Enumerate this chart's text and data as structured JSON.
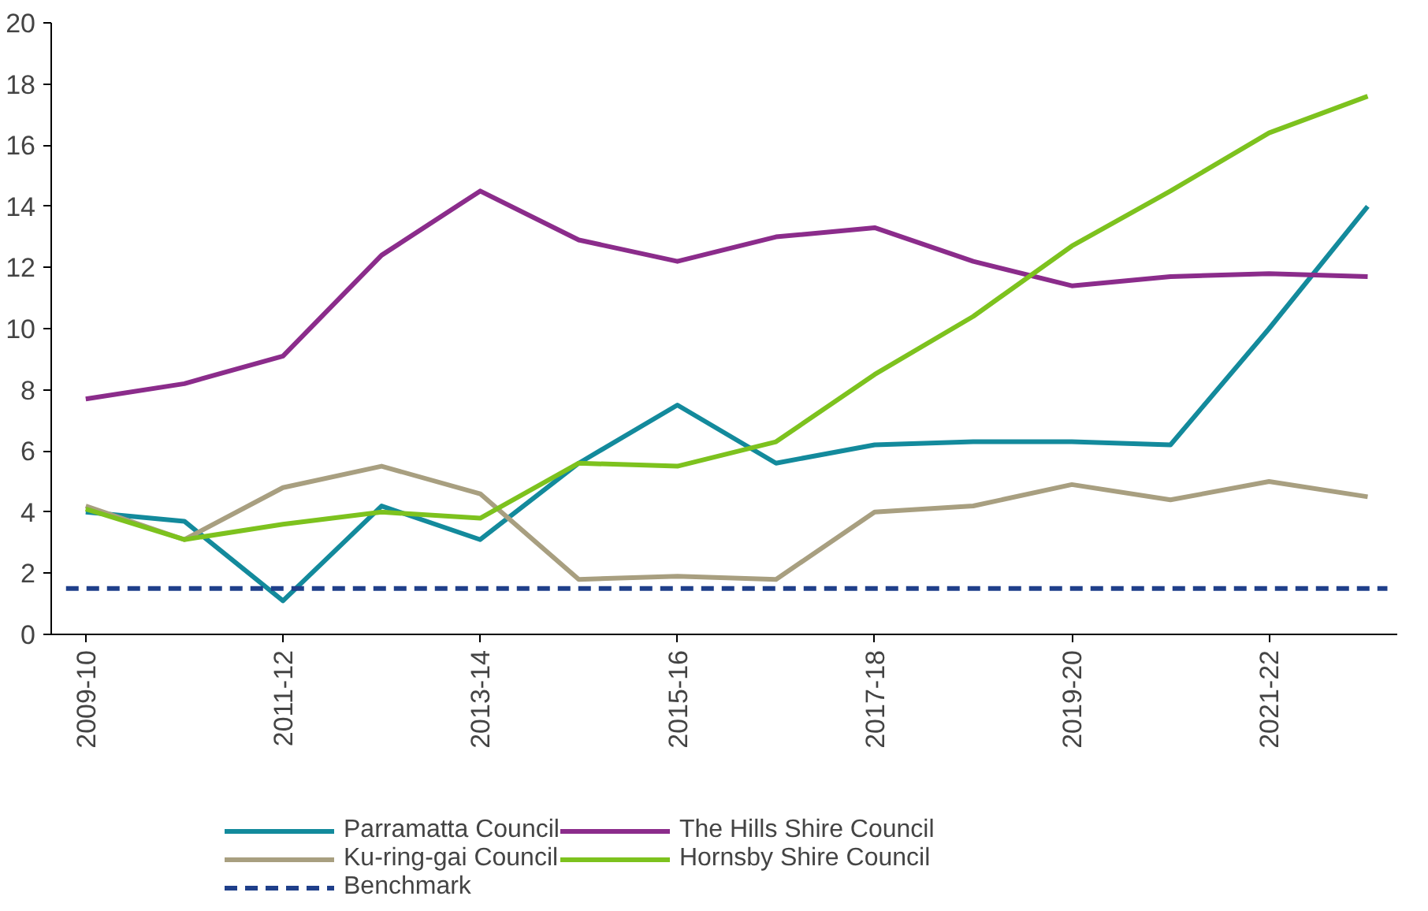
{
  "chart_data": {
    "type": "line",
    "categories": [
      "2009-10",
      null,
      "2011-12",
      null,
      "2013-14",
      null,
      "2015-16",
      null,
      "2017-18",
      null,
      "2019-20",
      null,
      "2021-22",
      null
    ],
    "series": [
      {
        "name": "Parramatta Council",
        "color": "#138a9c",
        "values": [
          4.0,
          3.7,
          1.1,
          4.2,
          3.1,
          5.6,
          7.5,
          5.6,
          6.2,
          6.3,
          6.3,
          6.2,
          10.0,
          14.0
        ]
      },
      {
        "name": "The Hills Shire Council",
        "color": "#8b2c8b",
        "values": [
          7.7,
          8.2,
          9.1,
          12.4,
          14.5,
          12.9,
          12.2,
          13.0,
          13.3,
          12.2,
          11.4,
          11.7,
          11.8,
          11.7
        ]
      },
      {
        "name": "Ku-ring-gai Council",
        "color": "#a89f80",
        "values": [
          4.2,
          3.1,
          4.8,
          5.5,
          4.6,
          1.8,
          1.9,
          1.8,
          4.0,
          4.2,
          4.9,
          4.4,
          5.0,
          4.5
        ]
      },
      {
        "name": "Hornsby Shire Council",
        "color": "#7dc21e",
        "values": [
          4.1,
          3.1,
          3.6,
          4.0,
          3.8,
          5.6,
          5.5,
          6.3,
          8.5,
          10.4,
          12.7,
          14.5,
          16.4,
          17.6
        ]
      }
    ],
    "ref_lines": [
      {
        "axis": "y",
        "value": 1.5,
        "label": "Benchmark",
        "color": "#1f3f8a",
        "line_style": "dashed"
      }
    ],
    "ylim": [
      0,
      20
    ],
    "yticks": [
      0,
      2,
      4,
      6,
      8,
      10,
      12,
      14,
      16,
      18,
      20
    ],
    "grid": false,
    "legend": "bottom",
    "marker": "none",
    "line_style": "solid"
  }
}
